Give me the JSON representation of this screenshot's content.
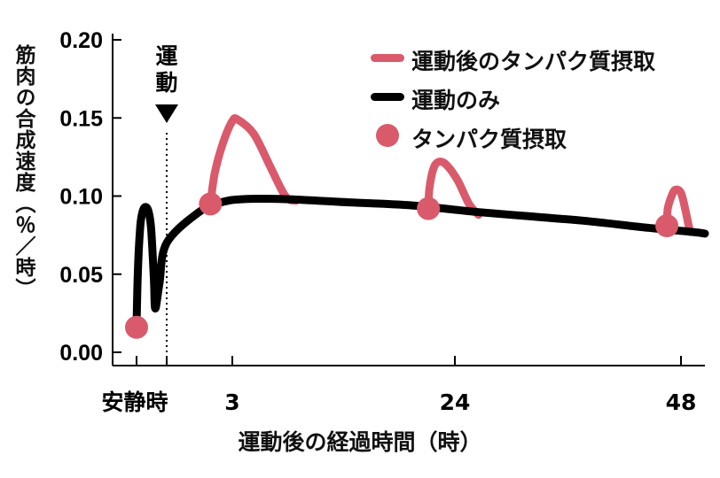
{
  "colors": {
    "line": "#000000",
    "accent": "#d95a6b"
  },
  "y_axis_label": "筋肉の合成速度（％／時）",
  "x_axis_label": "運動後の経過時間（時）",
  "marker_label": "運動",
  "legend": {
    "protein_after_exercise": "運動後のタンパク質摂取",
    "exercise_only": "運動のみ",
    "protein_intake": "タンパク質摂取"
  },
  "chart_data": {
    "type": "line",
    "ylabel": "筋肉の合成速度（％／時）",
    "xlabel": "運動後の経過時間（時）",
    "ylim": [
      0.0,
      0.2
    ],
    "y_ticks": [
      {
        "value": 0.0,
        "label": "0.00"
      },
      {
        "value": 0.05,
        "label": "0.05"
      },
      {
        "value": 0.1,
        "label": "0.10"
      },
      {
        "value": 0.15,
        "label": "0.15"
      },
      {
        "value": 0.2,
        "label": "0.20"
      }
    ],
    "x_ticks": [
      {
        "value": -5,
        "label": "安静時"
      },
      {
        "value": 0,
        "label": ""
      },
      {
        "value": 3,
        "label": "3"
      },
      {
        "value": 24,
        "label": "24"
      },
      {
        "value": 48,
        "label": "48"
      }
    ],
    "exercise_time": 0,
    "series": [
      {
        "name": "運動のみ",
        "points": [
          [
            -5,
            0.016
          ],
          [
            -4.8,
            0.05
          ],
          [
            -4.4,
            0.08
          ],
          [
            -4.0,
            0.09
          ],
          [
            -3.5,
            0.093
          ],
          [
            -3.0,
            0.09
          ],
          [
            -2.6,
            0.08
          ],
          [
            -2.3,
            0.06
          ],
          [
            -2.1,
            0.045
          ],
          [
            -1.9,
            0.028
          ],
          [
            -1.2,
            0.044
          ],
          [
            0,
            0.07
          ],
          [
            1.5,
            0.09
          ],
          [
            2.5,
            0.096
          ],
          [
            4,
            0.098
          ],
          [
            8,
            0.098
          ],
          [
            14,
            0.096
          ],
          [
            20,
            0.094
          ],
          [
            26,
            0.09
          ],
          [
            32,
            0.087
          ],
          [
            38,
            0.084
          ],
          [
            44,
            0.08
          ],
          [
            50,
            0.077
          ],
          [
            52,
            0.076
          ]
        ]
      },
      {
        "name": "運動後のタンパク質摂取",
        "peaks": [
          [
            [
              2.0,
              0.095
            ],
            [
              2.2,
              0.115
            ],
            [
              2.6,
              0.135
            ],
            [
              3.0,
              0.148
            ],
            [
              3.5,
              0.149
            ],
            [
              5.0,
              0.14
            ],
            [
              6.5,
              0.12
            ],
            [
              8.0,
              0.1
            ],
            [
              9.0,
              0.097
            ]
          ],
          [
            [
              21.5,
              0.092
            ],
            [
              21.6,
              0.105
            ],
            [
              22.0,
              0.118
            ],
            [
              22.5,
              0.122
            ],
            [
              23.2,
              0.12
            ],
            [
              24.3,
              0.11
            ],
            [
              25.5,
              0.095
            ],
            [
              26.5,
              0.088
            ]
          ],
          [
            [
              46.5,
              0.081
            ],
            [
              46.6,
              0.092
            ],
            [
              47.0,
              0.1
            ],
            [
              47.4,
              0.104
            ],
            [
              48.0,
              0.102
            ],
            [
              48.8,
              0.09
            ],
            [
              49.5,
              0.077
            ]
          ]
        ]
      }
    ],
    "markers": {
      "name": "タンパク質摂取",
      "points": [
        [
          -5,
          0.016
        ],
        [
          2.0,
          0.095
        ],
        [
          21.5,
          0.092
        ],
        [
          46.5,
          0.081
        ]
      ]
    }
  }
}
